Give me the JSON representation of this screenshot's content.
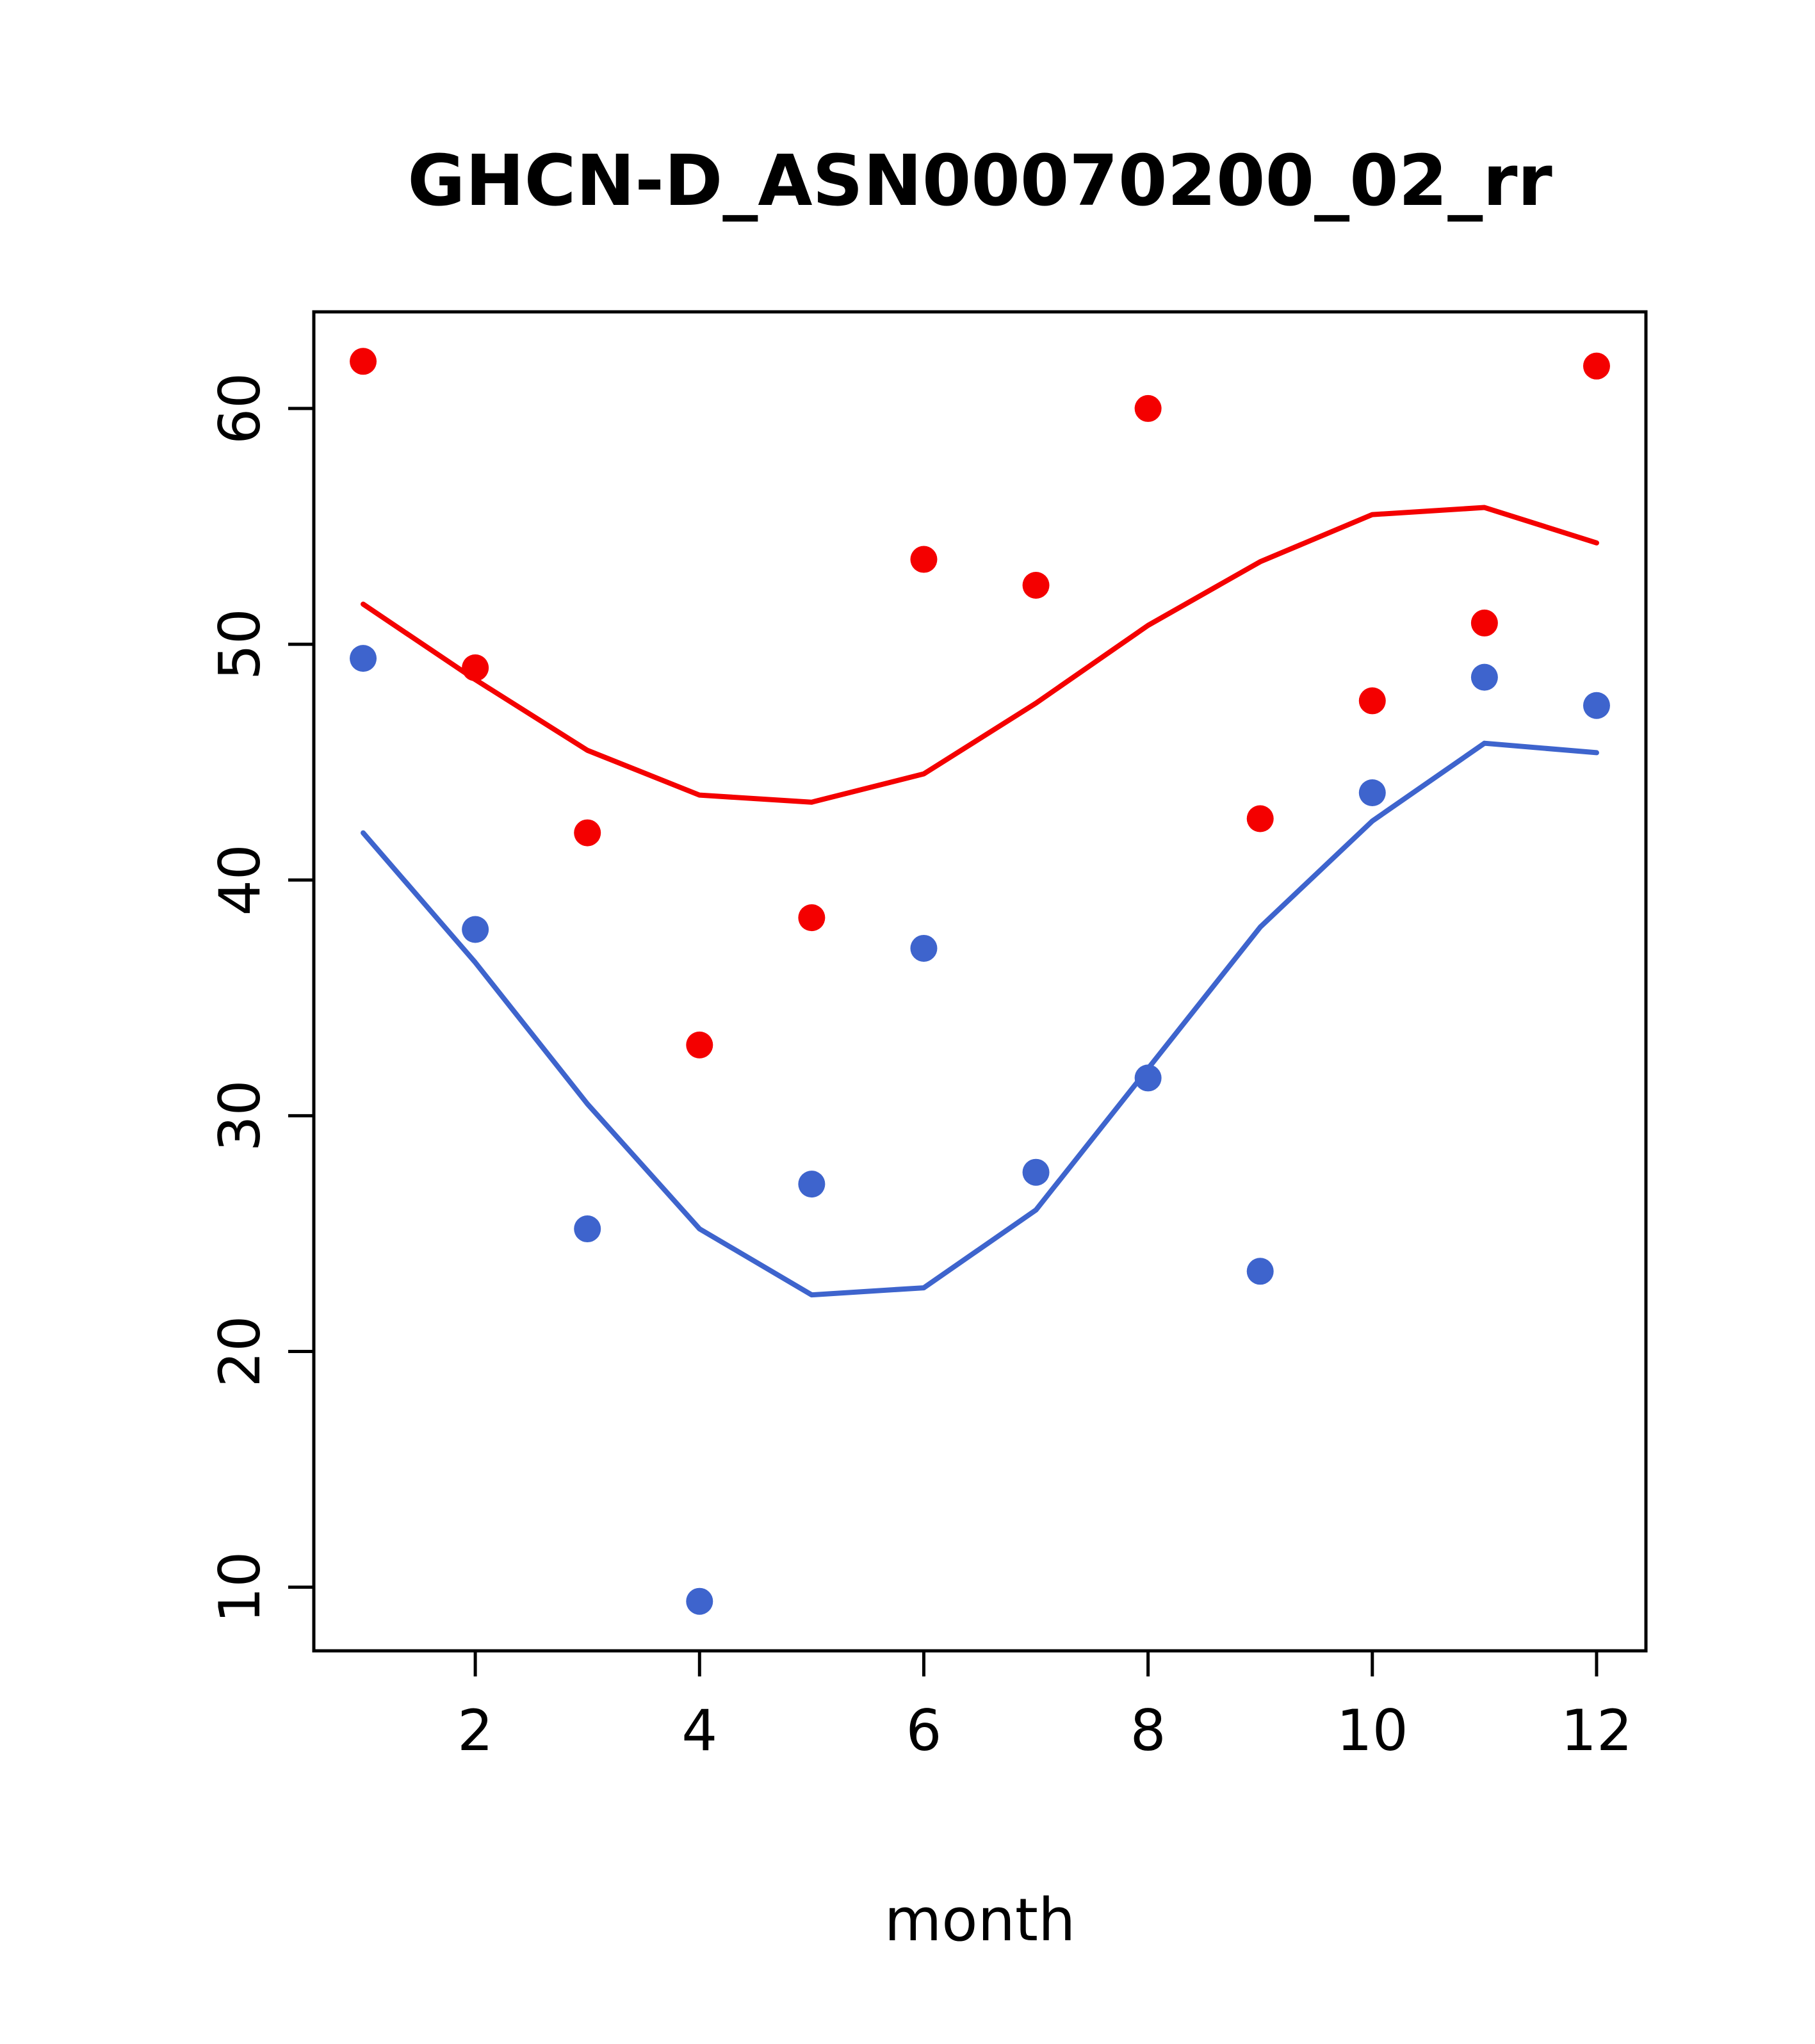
{
  "chart_data": {
    "type": "scatter",
    "title": "GHCN-D_ASN00070200_02_rr",
    "xlabel": "month",
    "ylabel": "",
    "x": [
      1,
      2,
      3,
      4,
      5,
      6,
      7,
      8,
      9,
      10,
      11,
      12
    ],
    "series": [
      {
        "name": "red-points",
        "style": "points",
        "color": "#f40000",
        "values": [
          62.0,
          49.0,
          42.0,
          33.0,
          38.4,
          53.6,
          52.5,
          60.0,
          42.6,
          47.6,
          50.9,
          61.8
        ]
      },
      {
        "name": "blue-points",
        "style": "points",
        "color": "#3e64cd",
        "values": [
          49.4,
          37.9,
          25.2,
          9.4,
          27.1,
          37.1,
          27.6,
          31.6,
          23.4,
          43.7,
          48.6,
          47.4
        ]
      },
      {
        "name": "red-smooth-line",
        "style": "line",
        "color": "#f40000",
        "values": [
          51.7,
          48.5,
          45.5,
          43.6,
          43.3,
          44.5,
          47.5,
          50.8,
          53.5,
          55.5,
          55.8,
          54.3
        ]
      },
      {
        "name": "blue-smooth-line",
        "style": "line",
        "color": "#3e64cd",
        "values": [
          42.0,
          36.5,
          30.5,
          25.2,
          22.4,
          22.7,
          26.0,
          32.0,
          38.0,
          42.5,
          45.8,
          45.4
        ]
      }
    ],
    "x_ticks": [
      2,
      4,
      6,
      8,
      10,
      12
    ],
    "y_ticks": [
      10,
      20,
      30,
      40,
      50,
      60
    ],
    "xlim": [
      0.56,
      12.44
    ],
    "ylim": [
      7.3,
      64.1
    ],
    "grid": false,
    "legend_position": "none",
    "background_color": "#ffffff",
    "axis_color": "#000000"
  }
}
